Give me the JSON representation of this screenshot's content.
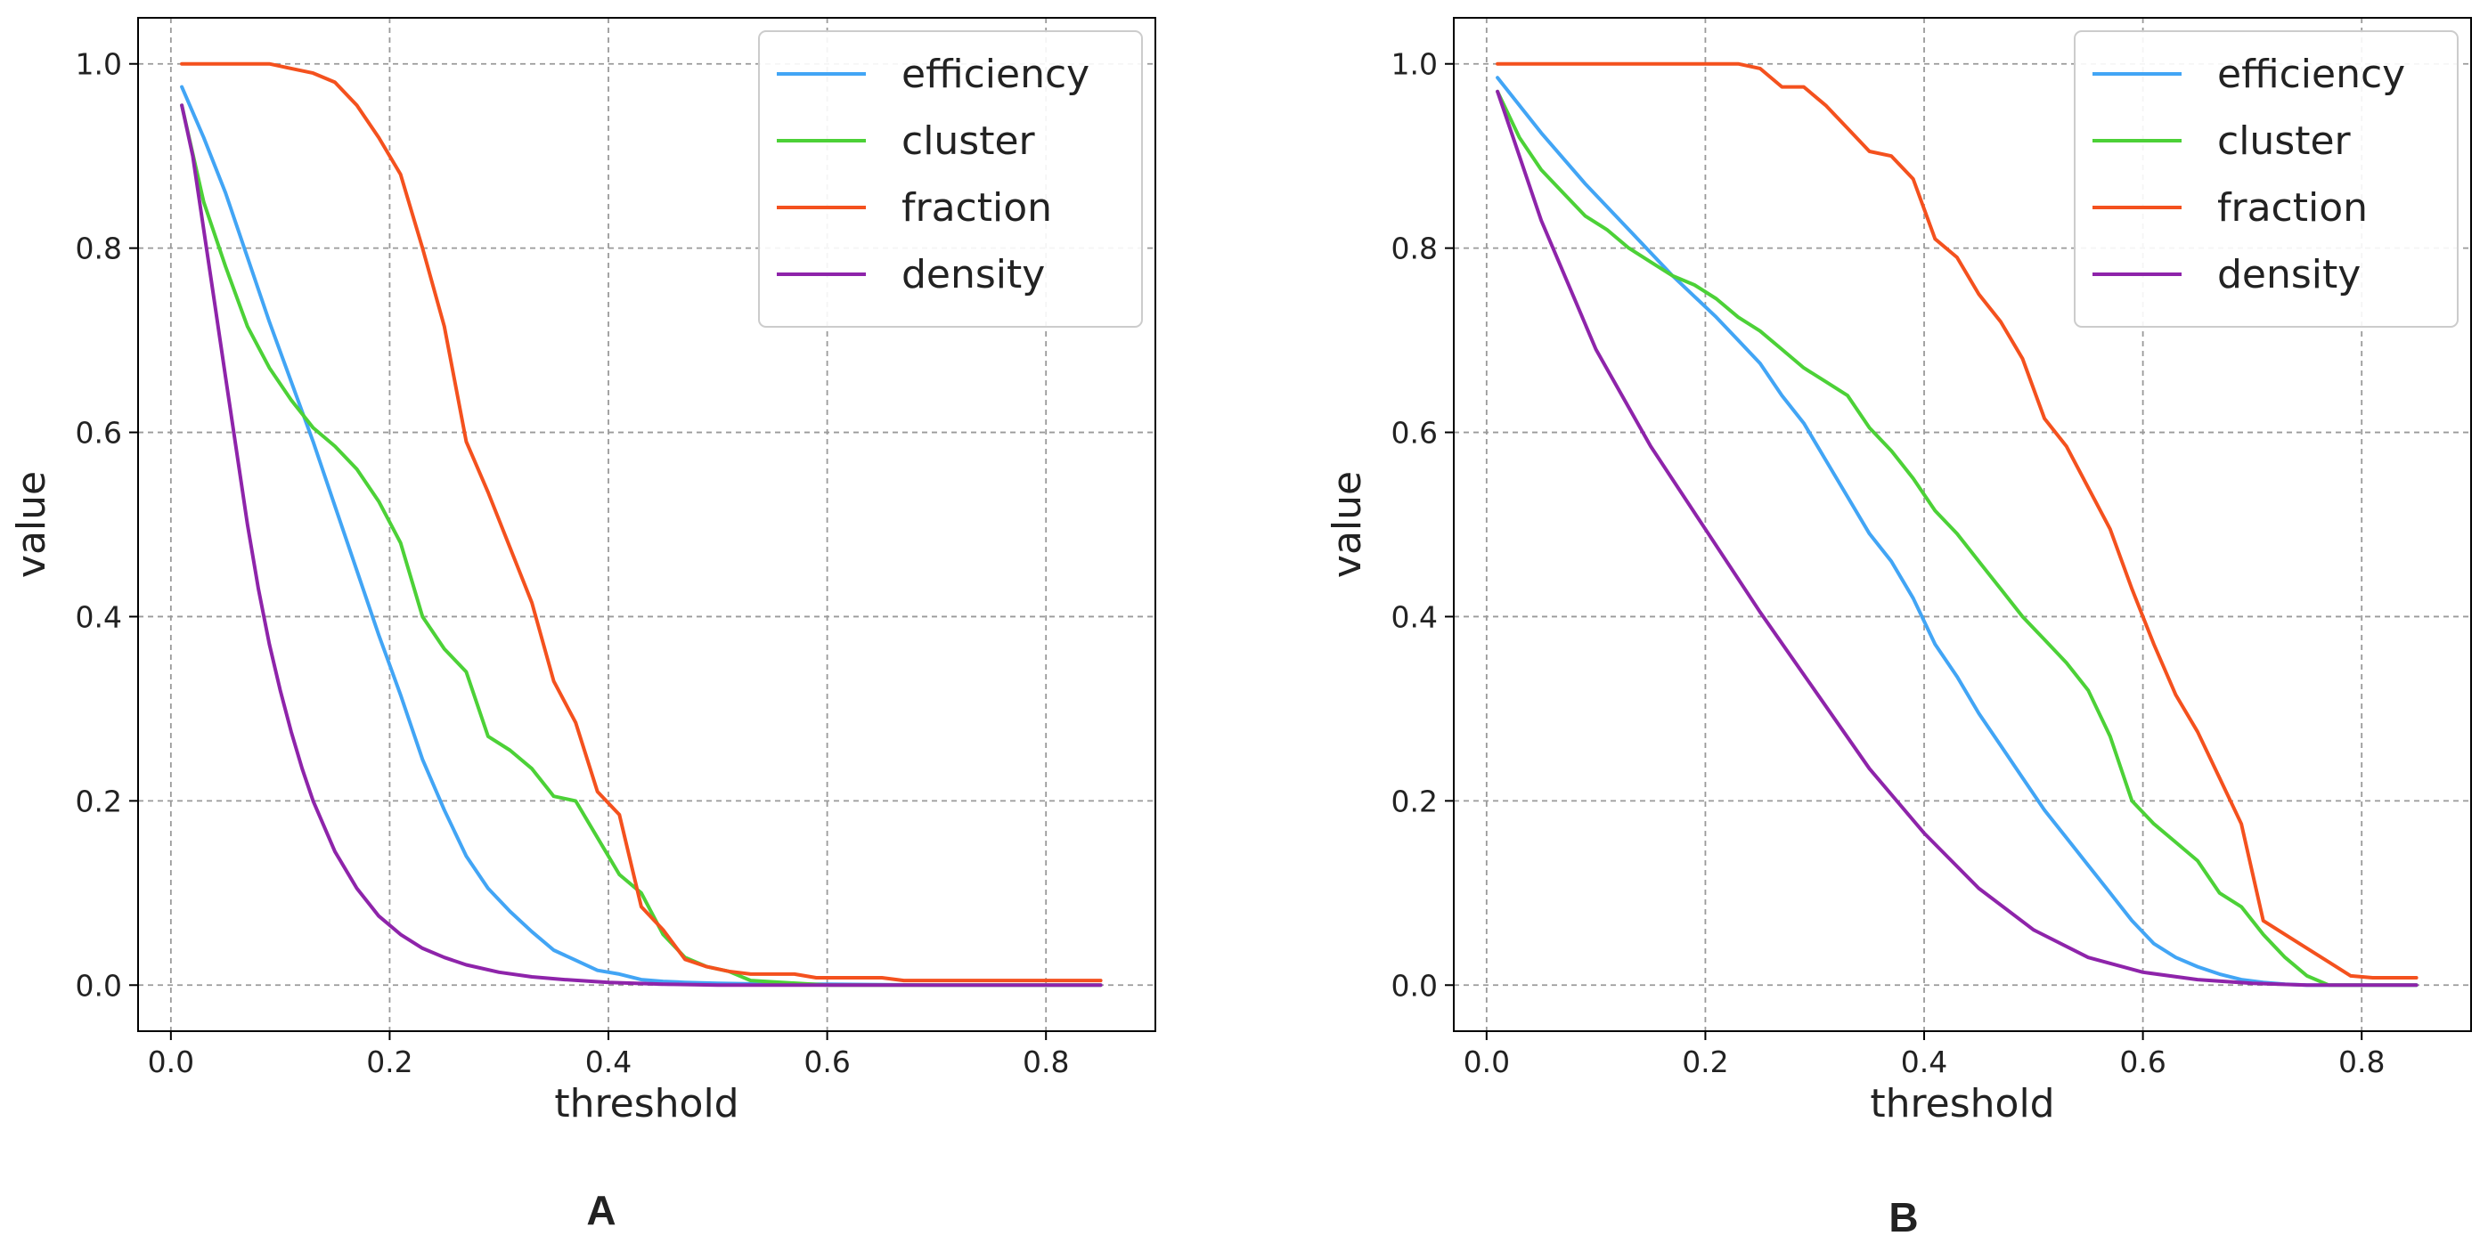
{
  "chart_data": [
    {
      "panel": "A",
      "type": "line",
      "xlabel": "threshold",
      "ylabel": "value",
      "xlim": [
        -0.03,
        0.9
      ],
      "ylim": [
        -0.05,
        1.05
      ],
      "xticks": [
        0.0,
        0.2,
        0.4,
        0.6,
        0.8
      ],
      "xtick_labels": [
        "0.0",
        "0.2",
        "0.4",
        "0.6",
        "0.8"
      ],
      "yticks": [
        0.0,
        0.2,
        0.4,
        0.6,
        0.8,
        1.0
      ],
      "ytick_labels": [
        "0.0",
        "0.2",
        "0.4",
        "0.6",
        "0.8",
        "1.0"
      ],
      "grid": true,
      "legend_position": "top-right",
      "series": [
        {
          "name": "efficiency",
          "color": "#42a5f5",
          "x": [
            0.01,
            0.03,
            0.05,
            0.07,
            0.09,
            0.11,
            0.13,
            0.15,
            0.17,
            0.19,
            0.21,
            0.23,
            0.25,
            0.27,
            0.29,
            0.31,
            0.33,
            0.35,
            0.37,
            0.39,
            0.41,
            0.43,
            0.45,
            0.47,
            0.5,
            0.55,
            0.6,
            0.7,
            0.85
          ],
          "y": [
            0.975,
            0.92,
            0.86,
            0.79,
            0.72,
            0.655,
            0.59,
            0.52,
            0.45,
            0.38,
            0.315,
            0.245,
            0.19,
            0.14,
            0.105,
            0.08,
            0.058,
            0.038,
            0.027,
            0.016,
            0.012,
            0.006,
            0.004,
            0.003,
            0.002,
            0.001,
            0.001,
            0.0,
            0.0
          ]
        },
        {
          "name": "cluster",
          "color": "#4cd137",
          "x": [
            0.01,
            0.03,
            0.05,
            0.07,
            0.09,
            0.11,
            0.13,
            0.15,
            0.17,
            0.19,
            0.21,
            0.23,
            0.25,
            0.27,
            0.29,
            0.31,
            0.33,
            0.35,
            0.37,
            0.39,
            0.41,
            0.43,
            0.45,
            0.47,
            0.49,
            0.51,
            0.53,
            0.6,
            0.85
          ],
          "y": [
            0.955,
            0.85,
            0.78,
            0.715,
            0.67,
            0.635,
            0.605,
            0.585,
            0.56,
            0.525,
            0.48,
            0.4,
            0.365,
            0.34,
            0.27,
            0.255,
            0.235,
            0.205,
            0.2,
            0.16,
            0.12,
            0.1,
            0.055,
            0.03,
            0.02,
            0.015,
            0.005,
            0.0,
            0.0
          ]
        },
        {
          "name": "fraction",
          "color": "#f4511e",
          "x": [
            0.01,
            0.03,
            0.05,
            0.07,
            0.09,
            0.11,
            0.13,
            0.15,
            0.17,
            0.19,
            0.21,
            0.23,
            0.25,
            0.27,
            0.29,
            0.31,
            0.33,
            0.35,
            0.37,
            0.39,
            0.41,
            0.43,
            0.45,
            0.47,
            0.49,
            0.51,
            0.53,
            0.55,
            0.57,
            0.59,
            0.65,
            0.67,
            0.85
          ],
          "y": [
            1.0,
            1.0,
            1.0,
            1.0,
            1.0,
            0.995,
            0.99,
            0.98,
            0.955,
            0.92,
            0.88,
            0.8,
            0.715,
            0.59,
            0.535,
            0.475,
            0.415,
            0.33,
            0.285,
            0.21,
            0.185,
            0.085,
            0.06,
            0.028,
            0.02,
            0.015,
            0.012,
            0.012,
            0.012,
            0.008,
            0.008,
            0.005,
            0.005
          ]
        },
        {
          "name": "density",
          "color": "#8e24aa",
          "x": [
            0.01,
            0.02,
            0.03,
            0.04,
            0.05,
            0.06,
            0.07,
            0.08,
            0.09,
            0.1,
            0.11,
            0.12,
            0.13,
            0.15,
            0.17,
            0.19,
            0.21,
            0.23,
            0.25,
            0.27,
            0.3,
            0.33,
            0.36,
            0.4,
            0.45,
            0.5,
            0.6,
            0.85
          ],
          "y": [
            0.955,
            0.9,
            0.82,
            0.74,
            0.66,
            0.58,
            0.5,
            0.43,
            0.37,
            0.32,
            0.275,
            0.235,
            0.2,
            0.145,
            0.105,
            0.075,
            0.055,
            0.04,
            0.03,
            0.022,
            0.014,
            0.009,
            0.006,
            0.003,
            0.001,
            0.0,
            0.0,
            0.0
          ]
        }
      ]
    },
    {
      "panel": "B",
      "type": "line",
      "xlabel": "threshold",
      "ylabel": "value",
      "xlim": [
        -0.03,
        0.9
      ],
      "ylim": [
        -0.05,
        1.05
      ],
      "xticks": [
        0.0,
        0.2,
        0.4,
        0.6,
        0.8
      ],
      "xtick_labels": [
        "0.0",
        "0.2",
        "0.4",
        "0.6",
        "0.8"
      ],
      "yticks": [
        0.0,
        0.2,
        0.4,
        0.6,
        0.8,
        1.0
      ],
      "ytick_labels": [
        "0.0",
        "0.2",
        "0.4",
        "0.6",
        "0.8",
        "1.0"
      ],
      "grid": true,
      "legend_position": "top-right",
      "series": [
        {
          "name": "efficiency",
          "color": "#42a5f5",
          "x": [
            0.01,
            0.05,
            0.09,
            0.13,
            0.17,
            0.21,
            0.23,
            0.25,
            0.27,
            0.29,
            0.31,
            0.33,
            0.35,
            0.37,
            0.39,
            0.41,
            0.43,
            0.45,
            0.47,
            0.49,
            0.51,
            0.53,
            0.55,
            0.57,
            0.59,
            0.61,
            0.63,
            0.65,
            0.67,
            0.69,
            0.71,
            0.73,
            0.75,
            0.8,
            0.85
          ],
          "y": [
            0.985,
            0.925,
            0.87,
            0.82,
            0.77,
            0.725,
            0.7,
            0.675,
            0.64,
            0.61,
            0.57,
            0.53,
            0.49,
            0.46,
            0.42,
            0.37,
            0.335,
            0.295,
            0.26,
            0.225,
            0.19,
            0.16,
            0.13,
            0.1,
            0.07,
            0.045,
            0.03,
            0.02,
            0.012,
            0.006,
            0.003,
            0.001,
            0.0,
            0.0,
            0.0
          ]
        },
        {
          "name": "cluster",
          "color": "#4cd137",
          "x": [
            0.01,
            0.03,
            0.05,
            0.07,
            0.09,
            0.11,
            0.13,
            0.15,
            0.17,
            0.19,
            0.21,
            0.23,
            0.25,
            0.27,
            0.29,
            0.31,
            0.33,
            0.35,
            0.37,
            0.39,
            0.41,
            0.43,
            0.45,
            0.47,
            0.49,
            0.51,
            0.53,
            0.55,
            0.57,
            0.59,
            0.61,
            0.63,
            0.65,
            0.67,
            0.69,
            0.71,
            0.73,
            0.75,
            0.77,
            0.8,
            0.85
          ],
          "y": [
            0.97,
            0.92,
            0.885,
            0.86,
            0.835,
            0.82,
            0.8,
            0.785,
            0.77,
            0.76,
            0.745,
            0.725,
            0.71,
            0.69,
            0.67,
            0.655,
            0.64,
            0.605,
            0.58,
            0.55,
            0.515,
            0.49,
            0.46,
            0.43,
            0.4,
            0.375,
            0.35,
            0.32,
            0.27,
            0.2,
            0.175,
            0.155,
            0.135,
            0.1,
            0.085,
            0.055,
            0.03,
            0.01,
            0.0,
            0.0,
            0.0
          ]
        },
        {
          "name": "fraction",
          "color": "#f4511e",
          "x": [
            0.01,
            0.05,
            0.1,
            0.15,
            0.2,
            0.23,
            0.25,
            0.27,
            0.29,
            0.31,
            0.33,
            0.35,
            0.37,
            0.39,
            0.41,
            0.43,
            0.45,
            0.47,
            0.49,
            0.51,
            0.53,
            0.55,
            0.57,
            0.59,
            0.61,
            0.63,
            0.65,
            0.67,
            0.69,
            0.71,
            0.73,
            0.75,
            0.77,
            0.79,
            0.81,
            0.85
          ],
          "y": [
            1.0,
            1.0,
            1.0,
            1.0,
            1.0,
            1.0,
            0.995,
            0.975,
            0.975,
            0.955,
            0.93,
            0.905,
            0.9,
            0.875,
            0.81,
            0.79,
            0.75,
            0.72,
            0.68,
            0.615,
            0.585,
            0.54,
            0.495,
            0.43,
            0.37,
            0.315,
            0.275,
            0.225,
            0.175,
            0.07,
            0.055,
            0.04,
            0.025,
            0.01,
            0.008,
            0.008
          ]
        },
        {
          "name": "density",
          "color": "#8e24aa",
          "x": [
            0.01,
            0.05,
            0.1,
            0.15,
            0.2,
            0.25,
            0.3,
            0.35,
            0.4,
            0.45,
            0.5,
            0.55,
            0.6,
            0.65,
            0.7,
            0.75,
            0.8,
            0.85
          ],
          "y": [
            0.97,
            0.83,
            0.69,
            0.585,
            0.495,
            0.405,
            0.32,
            0.235,
            0.165,
            0.105,
            0.06,
            0.03,
            0.014,
            0.006,
            0.002,
            0.0,
            0.0,
            0.0
          ]
        }
      ]
    }
  ],
  "labels": {
    "panel_a": "A",
    "panel_b": "B"
  }
}
